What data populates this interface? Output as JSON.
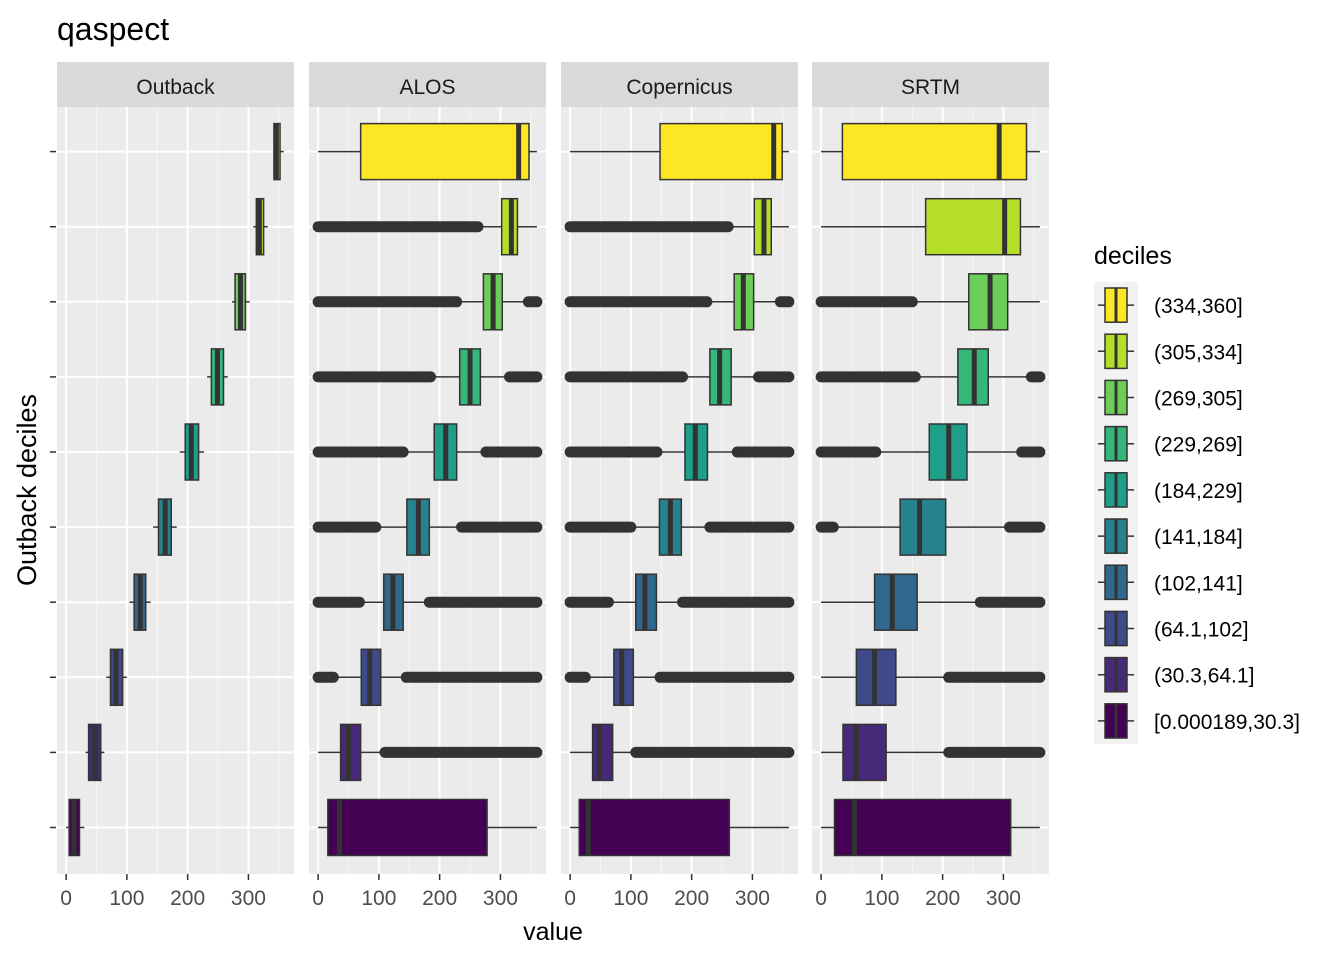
{
  "chart_data": {
    "type": "boxplot",
    "title": "qaspect",
    "xlabel": "value",
    "ylabel": "Outback deciles",
    "xlim": [
      -15,
      375
    ],
    "x_ticks": [
      0,
      100,
      200,
      300
    ],
    "x_tick_labels": [
      "0",
      "100",
      "200",
      "300"
    ],
    "panels": [
      "Outback",
      "ALOS",
      "Copernicus",
      "SRTM"
    ],
    "legend": {
      "title": "deciles",
      "position": "right",
      "entries": [
        "(334,360]",
        "(305,334]",
        "(269,305]",
        "(229,269]",
        "(184,229]",
        "(141,184]",
        "(102,141]",
        "(64.1,102]",
        "(30.3,64.1]",
        "[0.000189,30.3]"
      ],
      "colors": [
        "#FDE725",
        "#B5DE2B",
        "#6DCD59",
        "#35B779",
        "#1F9E89",
        "#26828E",
        "#31688E",
        "#3E4A89",
        "#482878",
        "#440154"
      ]
    },
    "series": [
      {
        "panel": "Outback",
        "boxes": [
          {
            "decile": "(334,360]",
            "q1": 342,
            "median": 346,
            "q3": 352,
            "wmin": 342,
            "wmax": 358,
            "out_lo": null,
            "out_hi": null
          },
          {
            "decile": "(305,334]",
            "q1": 313,
            "median": 318,
            "q3": 325,
            "wmin": 308,
            "wmax": 332,
            "out_lo": null,
            "out_hi": null
          },
          {
            "decile": "(269,305]",
            "q1": 278,
            "median": 287,
            "q3": 295,
            "wmin": 273,
            "wmax": 302,
            "out_lo": null,
            "out_hi": null
          },
          {
            "decile": "(229,269]",
            "q1": 239,
            "median": 249,
            "q3": 259,
            "wmin": 232,
            "wmax": 266,
            "out_lo": null,
            "out_hi": null
          },
          {
            "decile": "(184,229]",
            "q1": 196,
            "median": 206,
            "q3": 218,
            "wmin": 187,
            "wmax": 227,
            "out_lo": null,
            "out_hi": null
          },
          {
            "decile": "(141,184]",
            "q1": 152,
            "median": 163,
            "q3": 173,
            "wmin": 143,
            "wmax": 182,
            "out_lo": null,
            "out_hi": null
          },
          {
            "decile": "(102,141]",
            "q1": 112,
            "median": 122,
            "q3": 131,
            "wmin": 104,
            "wmax": 139,
            "out_lo": null,
            "out_hi": null
          },
          {
            "decile": "(64.1,102]",
            "q1": 73,
            "median": 82,
            "q3": 93,
            "wmin": 66,
            "wmax": 100,
            "out_lo": null,
            "out_hi": null
          },
          {
            "decile": "(30.3,64.1]",
            "q1": 37,
            "median": 47,
            "q3": 57,
            "wmin": 32,
            "wmax": 63,
            "out_lo": null,
            "out_hi": null
          },
          {
            "decile": "[0.000189,30.3]",
            "q1": 5,
            "median": 13,
            "q3": 22,
            "wmin": 0,
            "wmax": 30,
            "out_lo": null,
            "out_hi": null
          }
        ]
      },
      {
        "panel": "ALOS",
        "boxes": [
          {
            "decile": "(334,360]",
            "q1": 70,
            "median": 330,
            "q3": 347,
            "wmin": 0,
            "wmax": 360,
            "out_lo": null,
            "out_hi": null
          },
          {
            "decile": "(305,334]",
            "q1": 302,
            "median": 318,
            "q3": 328,
            "wmin": 263,
            "wmax": 360,
            "out_lo": [
              0,
              263
            ],
            "out_hi": null
          },
          {
            "decile": "(269,305]",
            "q1": 272,
            "median": 288,
            "q3": 303,
            "wmin": 228,
            "wmax": 340,
            "out_lo": [
              0,
              228
            ],
            "out_hi": [
              346,
              360
            ]
          },
          {
            "decile": "(229,269]",
            "q1": 233,
            "median": 250,
            "q3": 267,
            "wmin": 185,
            "wmax": 315,
            "out_lo": [
              0,
              185
            ],
            "out_hi": [
              315,
              360
            ]
          },
          {
            "decile": "(184,229]",
            "q1": 191,
            "median": 210,
            "q3": 228,
            "wmin": 140,
            "wmax": 276,
            "out_lo": [
              0,
              140
            ],
            "out_hi": [
              276,
              360
            ]
          },
          {
            "decile": "(141,184]",
            "q1": 146,
            "median": 165,
            "q3": 183,
            "wmin": 95,
            "wmax": 236,
            "out_lo": [
              0,
              95
            ],
            "out_hi": [
              236,
              360
            ]
          },
          {
            "decile": "(102,141]",
            "q1": 108,
            "median": 123,
            "q3": 140,
            "wmin": 68,
            "wmax": 183,
            "out_lo": [
              0,
              68
            ],
            "out_hi": [
              183,
              360
            ]
          },
          {
            "decile": "(64.1,102]",
            "q1": 71,
            "median": 85,
            "q3": 103,
            "wmin": 25,
            "wmax": 145,
            "out_lo": [
              0,
              25
            ],
            "out_hi": [
              145,
              360
            ]
          },
          {
            "decile": "(30.3,64.1]",
            "q1": 37,
            "median": 50,
            "q3": 70,
            "wmin": 0,
            "wmax": 110,
            "out_lo": null,
            "out_hi": [
              110,
              360
            ]
          },
          {
            "decile": "[0.000189,30.3]",
            "q1": 16,
            "median": 35,
            "q3": 278,
            "wmin": 0,
            "wmax": 360,
            "out_lo": null,
            "out_hi": null
          }
        ]
      },
      {
        "panel": "Copernicus",
        "boxes": [
          {
            "decile": "(334,360]",
            "q1": 148,
            "median": 335,
            "q3": 349,
            "wmin": 0,
            "wmax": 360,
            "out_lo": null,
            "out_hi": null
          },
          {
            "decile": "(305,334]",
            "q1": 303,
            "median": 319,
            "q3": 331,
            "wmin": 260,
            "wmax": 360,
            "out_lo": [
              0,
              260
            ],
            "out_hi": null
          },
          {
            "decile": "(269,305]",
            "q1": 270,
            "median": 285,
            "q3": 302,
            "wmin": 225,
            "wmax": 346,
            "out_lo": [
              0,
              225
            ],
            "out_hi": [
              346,
              360
            ]
          },
          {
            "decile": "(229,269]",
            "q1": 230,
            "median": 246,
            "q3": 265,
            "wmin": 185,
            "wmax": 310,
            "out_lo": [
              0,
              185
            ],
            "out_hi": [
              310,
              360
            ]
          },
          {
            "decile": "(184,229]",
            "q1": 189,
            "median": 206,
            "q3": 226,
            "wmin": 143,
            "wmax": 275,
            "out_lo": [
              0,
              143
            ],
            "out_hi": [
              275,
              360
            ]
          },
          {
            "decile": "(141,184]",
            "q1": 147,
            "median": 165,
            "q3": 183,
            "wmin": 100,
            "wmax": 230,
            "out_lo": [
              0,
              100
            ],
            "out_hi": [
              230,
              360
            ]
          },
          {
            "decile": "(102,141]",
            "q1": 108,
            "median": 123,
            "q3": 142,
            "wmin": 63,
            "wmax": 185,
            "out_lo": [
              0,
              63
            ],
            "out_hi": [
              185,
              360
            ]
          },
          {
            "decile": "(64.1,102]",
            "q1": 72,
            "median": 85,
            "q3": 104,
            "wmin": 25,
            "wmax": 148,
            "out_lo": [
              0,
              25
            ],
            "out_hi": [
              148,
              360
            ]
          },
          {
            "decile": "(30.3,64.1]",
            "q1": 37,
            "median": 48,
            "q3": 70,
            "wmin": 0,
            "wmax": 108,
            "out_lo": null,
            "out_hi": [
              108,
              360
            ]
          },
          {
            "decile": "[0.000189,30.3]",
            "q1": 15,
            "median": 30,
            "q3": 262,
            "wmin": 0,
            "wmax": 360,
            "out_lo": null,
            "out_hi": null
          }
        ]
      },
      {
        "panel": "SRTM",
        "boxes": [
          {
            "decile": "(334,360]",
            "q1": 35,
            "median": 293,
            "q3": 338,
            "wmin": 0,
            "wmax": 360,
            "out_lo": null,
            "out_hi": null
          },
          {
            "decile": "(305,334]",
            "q1": 172,
            "median": 302,
            "q3": 328,
            "wmin": 0,
            "wmax": 360,
            "out_lo": null,
            "out_hi": null
          },
          {
            "decile": "(269,305]",
            "q1": 243,
            "median": 278,
            "q3": 307,
            "wmin": 150,
            "wmax": 360,
            "out_lo": [
              0,
              150
            ],
            "out_hi": null
          },
          {
            "decile": "(229,269]",
            "q1": 225,
            "median": 252,
            "q3": 275,
            "wmin": 155,
            "wmax": 340,
            "out_lo": [
              0,
              155
            ],
            "out_hi": [
              346,
              360
            ]
          },
          {
            "decile": "(184,229]",
            "q1": 178,
            "median": 210,
            "q3": 240,
            "wmin": 90,
            "wmax": 330,
            "out_lo": [
              0,
              90
            ],
            "out_hi": [
              330,
              360
            ]
          },
          {
            "decile": "(141,184]",
            "q1": 130,
            "median": 162,
            "q3": 205,
            "wmin": 20,
            "wmax": 310,
            "out_lo": [
              0,
              20
            ],
            "out_hi": [
              310,
              360
            ]
          },
          {
            "decile": "(102,141]",
            "q1": 88,
            "median": 117,
            "q3": 158,
            "wmin": 0,
            "wmax": 262,
            "out_lo": null,
            "out_hi": [
              262,
              360
            ]
          },
          {
            "decile": "(64.1,102]",
            "q1": 58,
            "median": 88,
            "q3": 123,
            "wmin": 0,
            "wmax": 210,
            "out_lo": null,
            "out_hi": [
              210,
              360
            ]
          },
          {
            "decile": "(30.3,64.1]",
            "q1": 36,
            "median": 58,
            "q3": 107,
            "wmin": 0,
            "wmax": 210,
            "out_lo": null,
            "out_hi": [
              210,
              360
            ]
          },
          {
            "decile": "[0.000189,30.3]",
            "q1": 22,
            "median": 55,
            "q3": 312,
            "wmin": 0,
            "wmax": 360,
            "out_lo": null,
            "out_hi": null
          }
        ]
      }
    ]
  }
}
